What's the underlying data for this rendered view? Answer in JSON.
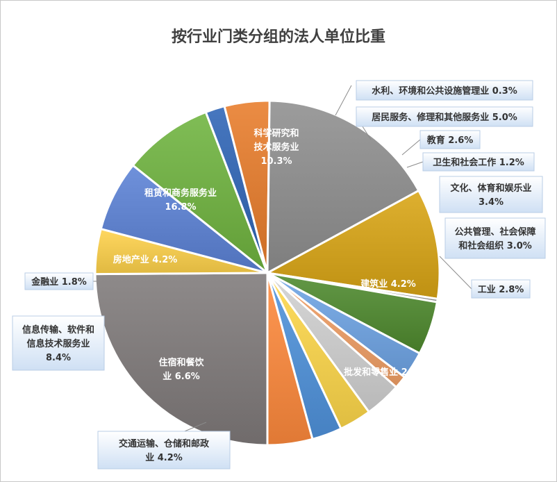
{
  "chart_data": {
    "type": "pie",
    "title": "按行业门类分组的法人单位比重",
    "slices": [
      {
        "name": "批发和零售业",
        "value": 24.8,
        "color": "#7f7a7a",
        "label": [
          "批发和零售业 24.8%"
        ]
      },
      {
        "name": "交通运输、仓储和邮政业",
        "value": 4.2,
        "color": "#ffd24a",
        "label": [
          "交通运输、仓储和邮政",
          "业 4.2%"
        ]
      },
      {
        "name": "住宿和餐饮业",
        "value": 6.6,
        "color": "#5b82d6",
        "label": [
          "住宿和餐饮",
          "业 6.6%"
        ]
      },
      {
        "name": "信息传输、软件和信息技术服务业",
        "value": 8.4,
        "color": "#6fb43f",
        "label": [
          "信息传输、软件和",
          "信息技术服务业",
          "8.4%"
        ]
      },
      {
        "name": "金融业",
        "value": 1.8,
        "color": "#2e64b6",
        "label": [
          "金融业 1.8%"
        ]
      },
      {
        "name": "房地产业",
        "value": 4.2,
        "color": "#e87c2a",
        "label": [
          "房地产业 4.2%"
        ]
      },
      {
        "name": "租赁和商务服务业",
        "value": 16.8,
        "color": "#8f8f8f",
        "label": [
          "租赁和商务服务业",
          "16.8%"
        ]
      },
      {
        "name": "科学研究和技术服务业",
        "value": 10.3,
        "color": "#d9a514",
        "label": [
          "科学研究和",
          "技术服务业",
          "10.3%"
        ]
      },
      {
        "name": "水利、环境和公共设施管理业",
        "value": 0.3,
        "color": "#9a9a9a",
        "label": [
          "水利、环境和公共设施管理业 0.3%"
        ]
      },
      {
        "name": "居民服务、修理和其他服务业",
        "value": 5.0,
        "color": "#4e8a2e",
        "label": [
          "居民服务、修理和其他服务业 5.0%"
        ]
      },
      {
        "name": "教育",
        "value": 2.6,
        "color": "#6fa5e6",
        "label": [
          "教育 2.6%"
        ]
      },
      {
        "name": "卫生和社会工作",
        "value": 1.2,
        "color": "#f2a066",
        "label": [
          "卫生和社会工作 1.2%"
        ]
      },
      {
        "name": "文化、体育和娱乐业",
        "value": 3.4,
        "color": "#d2d2d2",
        "label": [
          "文化、体育和娱乐业",
          "3.4%"
        ]
      },
      {
        "name": "公共管理、社会保障和社会组织",
        "value": 3.0,
        "color": "#ffd84a",
        "label": [
          "公共管理、社会保障",
          "和社会组织 3.0%"
        ]
      },
      {
        "name": "工业",
        "value": 2.8,
        "color": "#4f93dc",
        "label": [
          "工业 2.8%"
        ]
      },
      {
        "name": "建筑业",
        "value": 4.2,
        "color": "#ff8a3c",
        "label": [
          "建筑业 4.2%"
        ]
      }
    ]
  }
}
